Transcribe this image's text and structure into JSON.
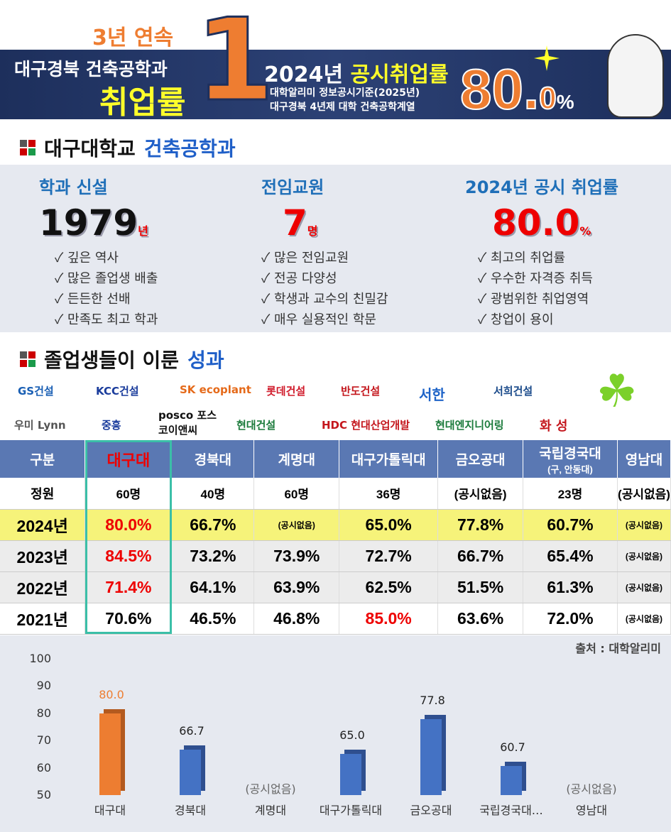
{
  "banner": {
    "consecutive": "3년 연속",
    "region_dept": "대구경북 건축공학과",
    "rate_word": "취업률",
    "rank": "1",
    "year_label": "2024년",
    "public_rate": "공시취업률",
    "source1": "대학알리미 정보공시기준(2025년)",
    "source2": "대구경북 4년제 대학 건축공학계열",
    "rate_int": "80",
    "rate_dot": ".",
    "rate_dec": "0",
    "rate_pct": "%"
  },
  "section1": {
    "school": "대구대학교",
    "dept": "건축공학과"
  },
  "stats": [
    {
      "title": "학과 신설",
      "value": "1979",
      "unit": "년",
      "points": [
        "✓ 깊은 역사",
        "✓ 많은 졸업생 배출",
        "✓ 든든한 선배",
        "✓ 만족도 최고 학과"
      ]
    },
    {
      "title": "전임교원",
      "value": "7",
      "unit": "명",
      "points": [
        "✓ 많은 전임교원",
        "✓ 전공 다양성",
        "✓ 학생과 교수의 친밀감",
        "✓ 매우 실용적인 학문"
      ]
    },
    {
      "title": "2024년 공시 취업률",
      "value": "80.0",
      "unit": "%",
      "points": [
        "✓  최고의 취업률",
        "✓  우수한 자격증 취득",
        "✓  광범위한 취업영역",
        "✓  창업이 용이"
      ]
    }
  ],
  "section2": {
    "title_a": "졸업생들이 이룬",
    "title_b": "성과"
  },
  "logos": [
    "GS건설",
    "KCC건설",
    "SK ecoplant",
    "롯데건설",
    "반도건설",
    "서한",
    "서희건설",
    "우미 Lynn",
    "중흥",
    "posco 포스코이앤씨",
    "현대건설",
    "HDC 현대산업개발",
    "현대엔지니어링",
    "화 성"
  ],
  "table": {
    "headers": [
      "구분",
      "대구대",
      "경북대",
      "계명대",
      "대구가톨릭대",
      "금오공대",
      "국립경국대",
      "영남대"
    ],
    "header_sub": "(구, 안동대)",
    "rows": [
      {
        "label": "정원",
        "cells": [
          "60명",
          "40명",
          "60명",
          "36명",
          "(공시없음)",
          "23명",
          "(공시없음)"
        ]
      },
      {
        "label": "2024년",
        "cells": [
          "80.0%",
          "66.7%",
          "(공시없음)",
          "65.0%",
          "77.8%",
          "60.7%",
          "(공시없음)"
        ]
      },
      {
        "label": "2023년",
        "cells": [
          "84.5%",
          "73.2%",
          "73.9%",
          "72.7%",
          "66.7%",
          "65.4%",
          "(공시없음)"
        ]
      },
      {
        "label": "2022년",
        "cells": [
          "71.4%",
          "64.1%",
          "63.9%",
          "62.5%",
          "51.5%",
          "61.3%",
          "(공시없음)"
        ]
      },
      {
        "label": "2021년",
        "cells": [
          "70.6%",
          "46.5%",
          "46.8%",
          "85.0%",
          "63.6%",
          "72.0%",
          "(공시없음)"
        ]
      }
    ],
    "source": "출처 : 대학알리미"
  },
  "chart_data": {
    "type": "bar",
    "categories": [
      "대구대",
      "경북대",
      "계명대",
      "대구가톨릭대",
      "금오공대",
      "국립경국대…",
      "영남대"
    ],
    "values": [
      80.0,
      66.7,
      null,
      65.0,
      77.8,
      60.7,
      null
    ],
    "value_labels": [
      "80.0",
      "66.7",
      "(공시없음)",
      "65.0",
      "77.8",
      "60.7",
      "(공시없음)"
    ],
    "ylim": [
      50,
      100
    ],
    "yticks": [
      "100",
      "90",
      "80",
      "70",
      "60",
      "50"
    ],
    "colors": {
      "highlight": "#ed7d31",
      "default": "#4472c4"
    },
    "grid": false
  }
}
